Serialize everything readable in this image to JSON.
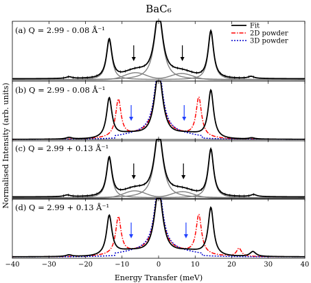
{
  "chart_data": {
    "type": "line",
    "title": "BaC₆",
    "xlabel": "Energy Transfer (meV)",
    "ylabel": "Normalised Intensity (arb. units)",
    "xlim": [
      -40,
      40
    ],
    "xticks": [
      "−40",
      "−30",
      "−20",
      "−10",
      "0",
      "10",
      "20",
      "30",
      "40"
    ],
    "legend": {
      "placement": "top-right",
      "entries": [
        "Fit",
        "2D powder",
        "3D powder"
      ]
    },
    "colors": {
      "fit": "#000000",
      "components": "#808080",
      "powder_2d": "#ff0000",
      "powder_3d": "#0000cc",
      "arrow_black": "#000000",
      "arrow_blue": "#1f3fff"
    },
    "panels": [
      {
        "label": "(a) Q = 2.99 - 0.08 Å⁻¹",
        "peaks": {
          "phonon_minus": -13.5,
          "phonon_plus": 14.3,
          "shoulder_minus": -6.3,
          "shoulder_plus": 6.3,
          "small_minus": -24.5,
          "small_plus": 25.3
        },
        "arrows": [
          {
            "x": -6.8,
            "color": "black"
          },
          {
            "x": 6.5,
            "color": "black"
          }
        ]
      },
      {
        "label": "(b) Q = 2.99 - 0.08 Å⁻¹",
        "peaks": {
          "phonon_minus": -13.5,
          "phonon_plus": 14.3,
          "powder_2d_minus": -11.0,
          "powder_2d_plus": 11.0
        },
        "arrows": [
          {
            "x": -7.5,
            "color": "blue"
          },
          {
            "x": 7.0,
            "color": "blue"
          }
        ]
      },
      {
        "label": "(c) Q = 2.99 + 0.13 Å⁻¹",
        "peaks": {
          "phonon_minus": -13.5,
          "phonon_plus": 14.3,
          "shoulder_minus": -6.5,
          "shoulder_plus": 6.5,
          "small_minus": -25.0,
          "small_plus": 26.0
        },
        "arrows": [
          {
            "x": -6.8,
            "color": "black"
          },
          {
            "x": 6.8,
            "color": "black"
          }
        ]
      },
      {
        "label": "(d) Q = 2.99 + 0.13 Å⁻¹",
        "peaks": {
          "phonon_minus": -13.5,
          "phonon_plus": 14.3,
          "powder_2d_minus": -11.0,
          "powder_2d_plus": 11.0,
          "powder_2d_extra": 22.0,
          "small_plus": 25.8
        },
        "arrows": [
          {
            "x": -7.5,
            "color": "blue"
          },
          {
            "x": 7.5,
            "color": "blue"
          }
        ]
      }
    ]
  }
}
